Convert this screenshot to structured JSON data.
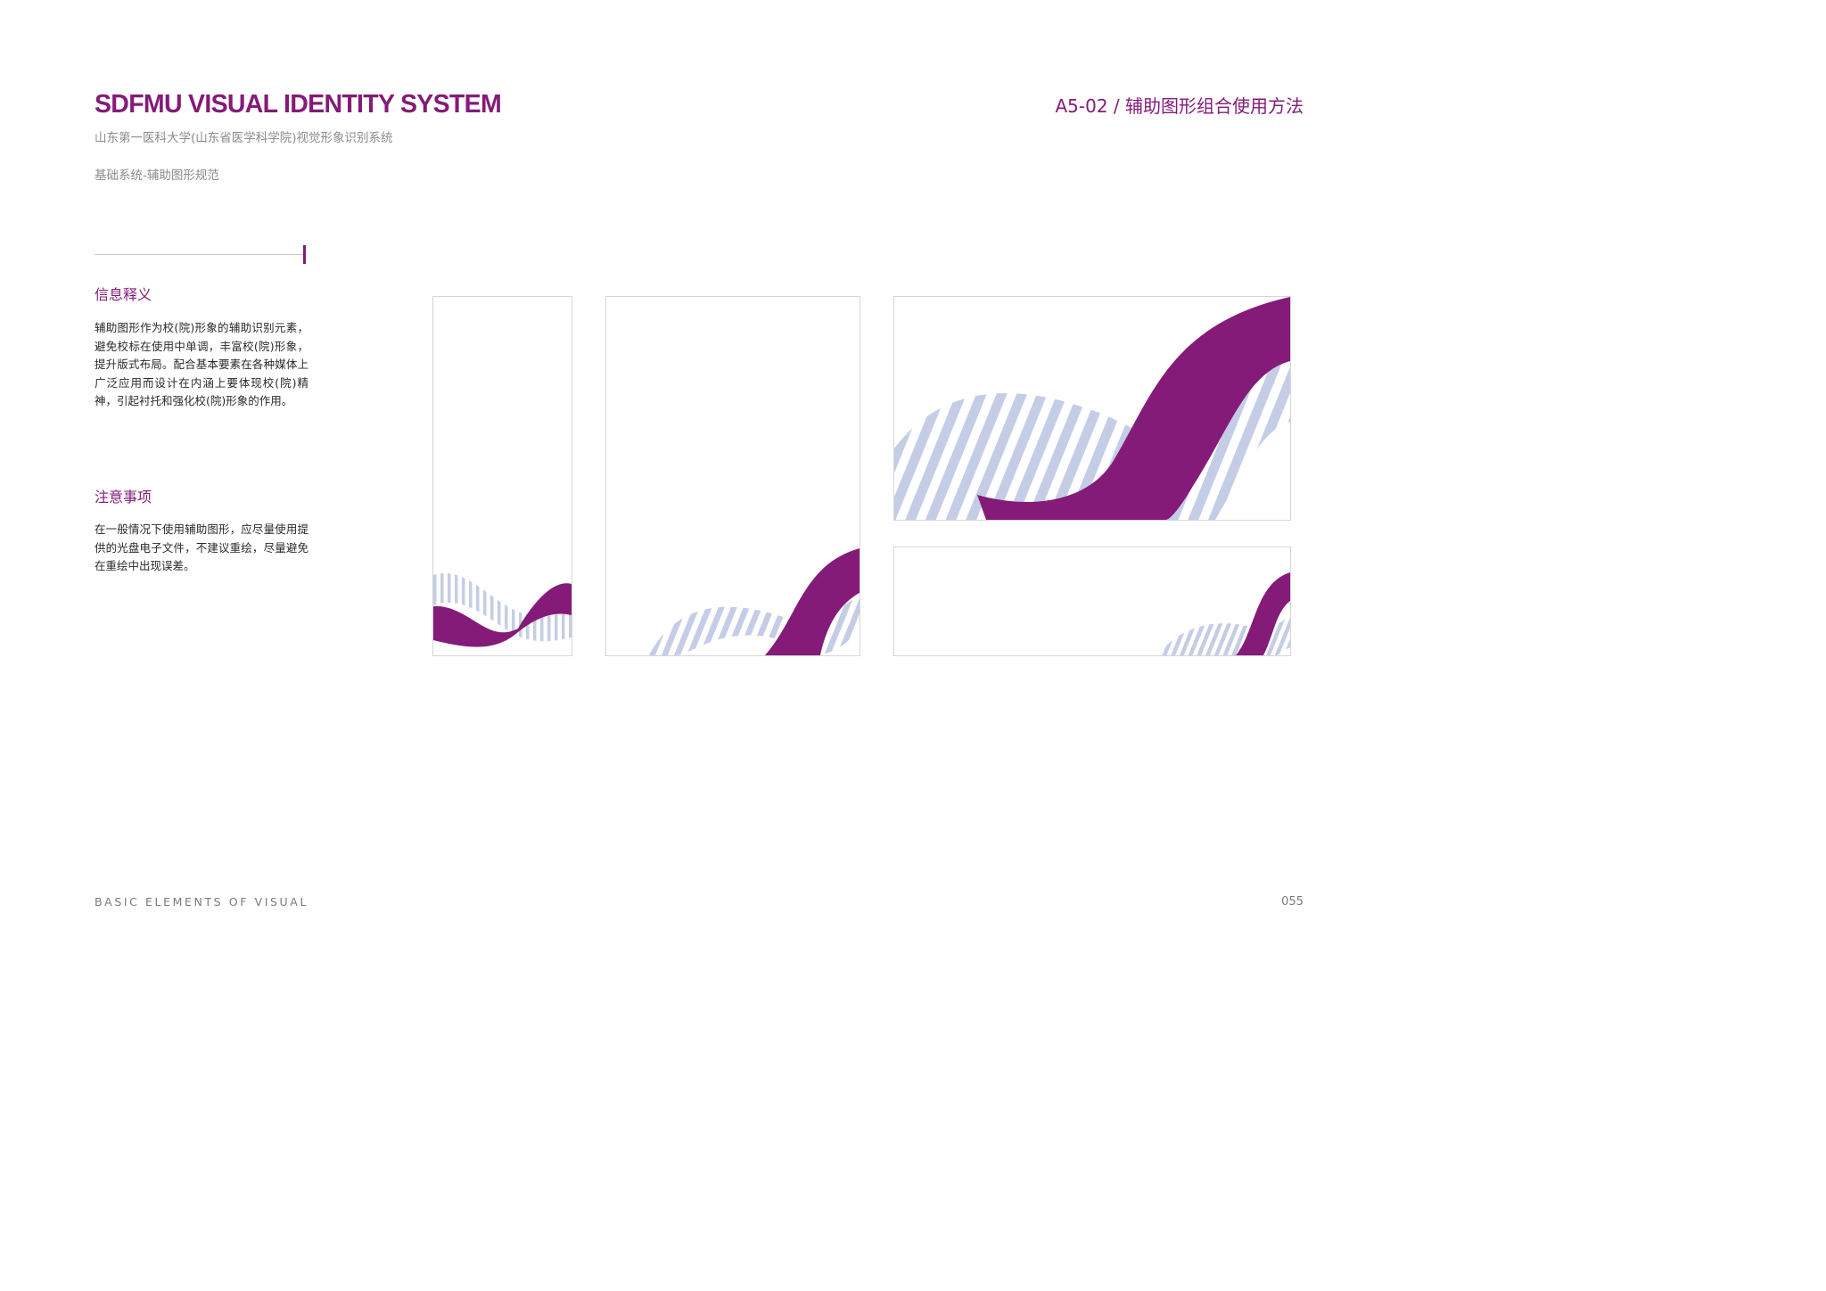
{
  "header": {
    "title": "SDFMU VISUAL IDENTITY SYSTEM",
    "subtitle": "山东第一医科大学(山东省医学科学院)视觉形象识别系统",
    "section": "基础系统-辅助图形规范",
    "page_code_title": "A5-02 /  辅助图形组合使用方法"
  },
  "info": {
    "heading": "信息释义",
    "text": "辅助图形作为校(院)形象的辅助识别元素，避免校标在使用中单调，丰富校(院)形象，提升版式布局。配合基本要素在各种媒体上广泛应用而设计在内涵上要体现校(院)精神，引起衬托和强化校(院)形象的作用。"
  },
  "notes": {
    "heading": "注意事项",
    "text": "在一般情况下使用辅助图形，应尽量使用提供的光盘电子文件，不建议重绘，尽量避免在重绘中出现误差。"
  },
  "footer": {
    "label": "BASIC ELEMENTS OF VISUAL",
    "page_number": "055"
  },
  "colors": {
    "brand_purple": "#841b78",
    "stripe_blue": "#c5cde6",
    "text_gray": "#8b8b8b"
  }
}
